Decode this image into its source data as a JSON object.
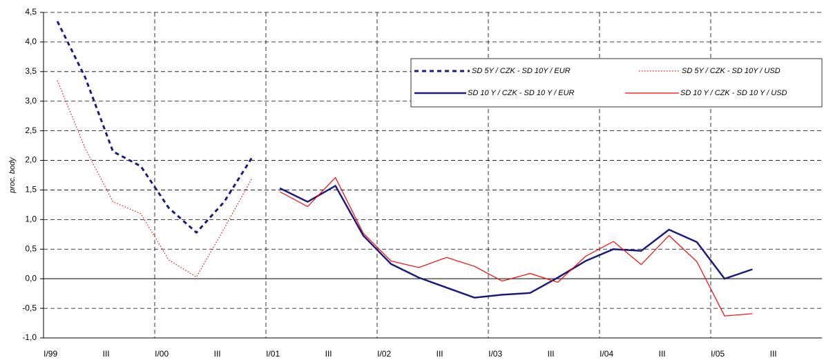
{
  "chart_data": {
    "type": "line",
    "y_label": "proc. body",
    "categories": [
      "I/99",
      null,
      "III",
      null,
      "I/00",
      null,
      "III",
      null,
      "I/01",
      null,
      "III",
      null,
      "I/02",
      null,
      "III",
      null,
      "I/03",
      null,
      "III",
      null,
      "I/04",
      null,
      "III",
      null,
      "I/05",
      null,
      "III",
      null
    ],
    "series": [
      {
        "name": "SD 5Y / CZK - SD 10Y / EUR",
        "color": "#1a1a80",
        "style": "dashed",
        "width": 3,
        "values": [
          4.35,
          3.4,
          2.15,
          1.9,
          1.2,
          0.78,
          1.3,
          2.05,
          null,
          null,
          null,
          null,
          null,
          null,
          null,
          null,
          null,
          null,
          null,
          null,
          null,
          null,
          null,
          null,
          null,
          null,
          null,
          null
        ]
      },
      {
        "name": "SD 5Y / CZK - SD 10Y / USD",
        "color": "#ff0000",
        "style": "dotted",
        "width": 1.2,
        "values": [
          3.35,
          2.2,
          1.3,
          1.1,
          0.32,
          0.03,
          0.85,
          1.7,
          null,
          null,
          null,
          null,
          null,
          null,
          null,
          null,
          null,
          null,
          null,
          null,
          null,
          null,
          null,
          null,
          null,
          null,
          null,
          null
        ]
      },
      {
        "name": "SD 10 Y / CZK - SD 10 Y / EUR",
        "color": "#1a1a80",
        "style": "solid",
        "width": 2.5,
        "values": [
          null,
          null,
          null,
          null,
          null,
          null,
          null,
          null,
          1.53,
          1.3,
          1.57,
          0.73,
          0.25,
          0.02,
          -0.15,
          -0.32,
          -0.27,
          -0.24,
          0.02,
          0.3,
          0.5,
          0.47,
          0.83,
          0.62,
          0.0,
          0.16,
          null,
          null
        ]
      },
      {
        "name": "SD 10 Y / CZK - SD 10 Y / USD",
        "color": "#ff0000",
        "style": "solid",
        "width": 1.2,
        "values": [
          null,
          null,
          null,
          null,
          null,
          null,
          null,
          null,
          1.47,
          1.22,
          1.71,
          0.77,
          0.3,
          0.19,
          0.36,
          0.21,
          -0.04,
          0.09,
          -0.06,
          0.38,
          0.63,
          0.24,
          0.73,
          0.29,
          -0.63,
          -0.59,
          null,
          null
        ]
      }
    ],
    "ylim": [
      -1.0,
      4.5
    ],
    "yticks": [
      {
        "value": -1.0,
        "label": "-1,0"
      },
      {
        "value": -0.5,
        "label": "-0,5"
      },
      {
        "value": 0,
        "label": "0,0"
      },
      {
        "value": 0.5,
        "label": "0,5"
      },
      {
        "value": 1.0,
        "label": "1,0"
      },
      {
        "value": 1.5,
        "label": "1,5"
      },
      {
        "value": 2.0,
        "label": "2,0"
      },
      {
        "value": 2.5,
        "label": "2,5"
      },
      {
        "value": 3.0,
        "label": "3,0"
      },
      {
        "value": 3.5,
        "label": "3,5"
      },
      {
        "value": 4.0,
        "label": "4,0"
      },
      {
        "value": 4.5,
        "label": "4,5"
      }
    ],
    "grid": true
  }
}
